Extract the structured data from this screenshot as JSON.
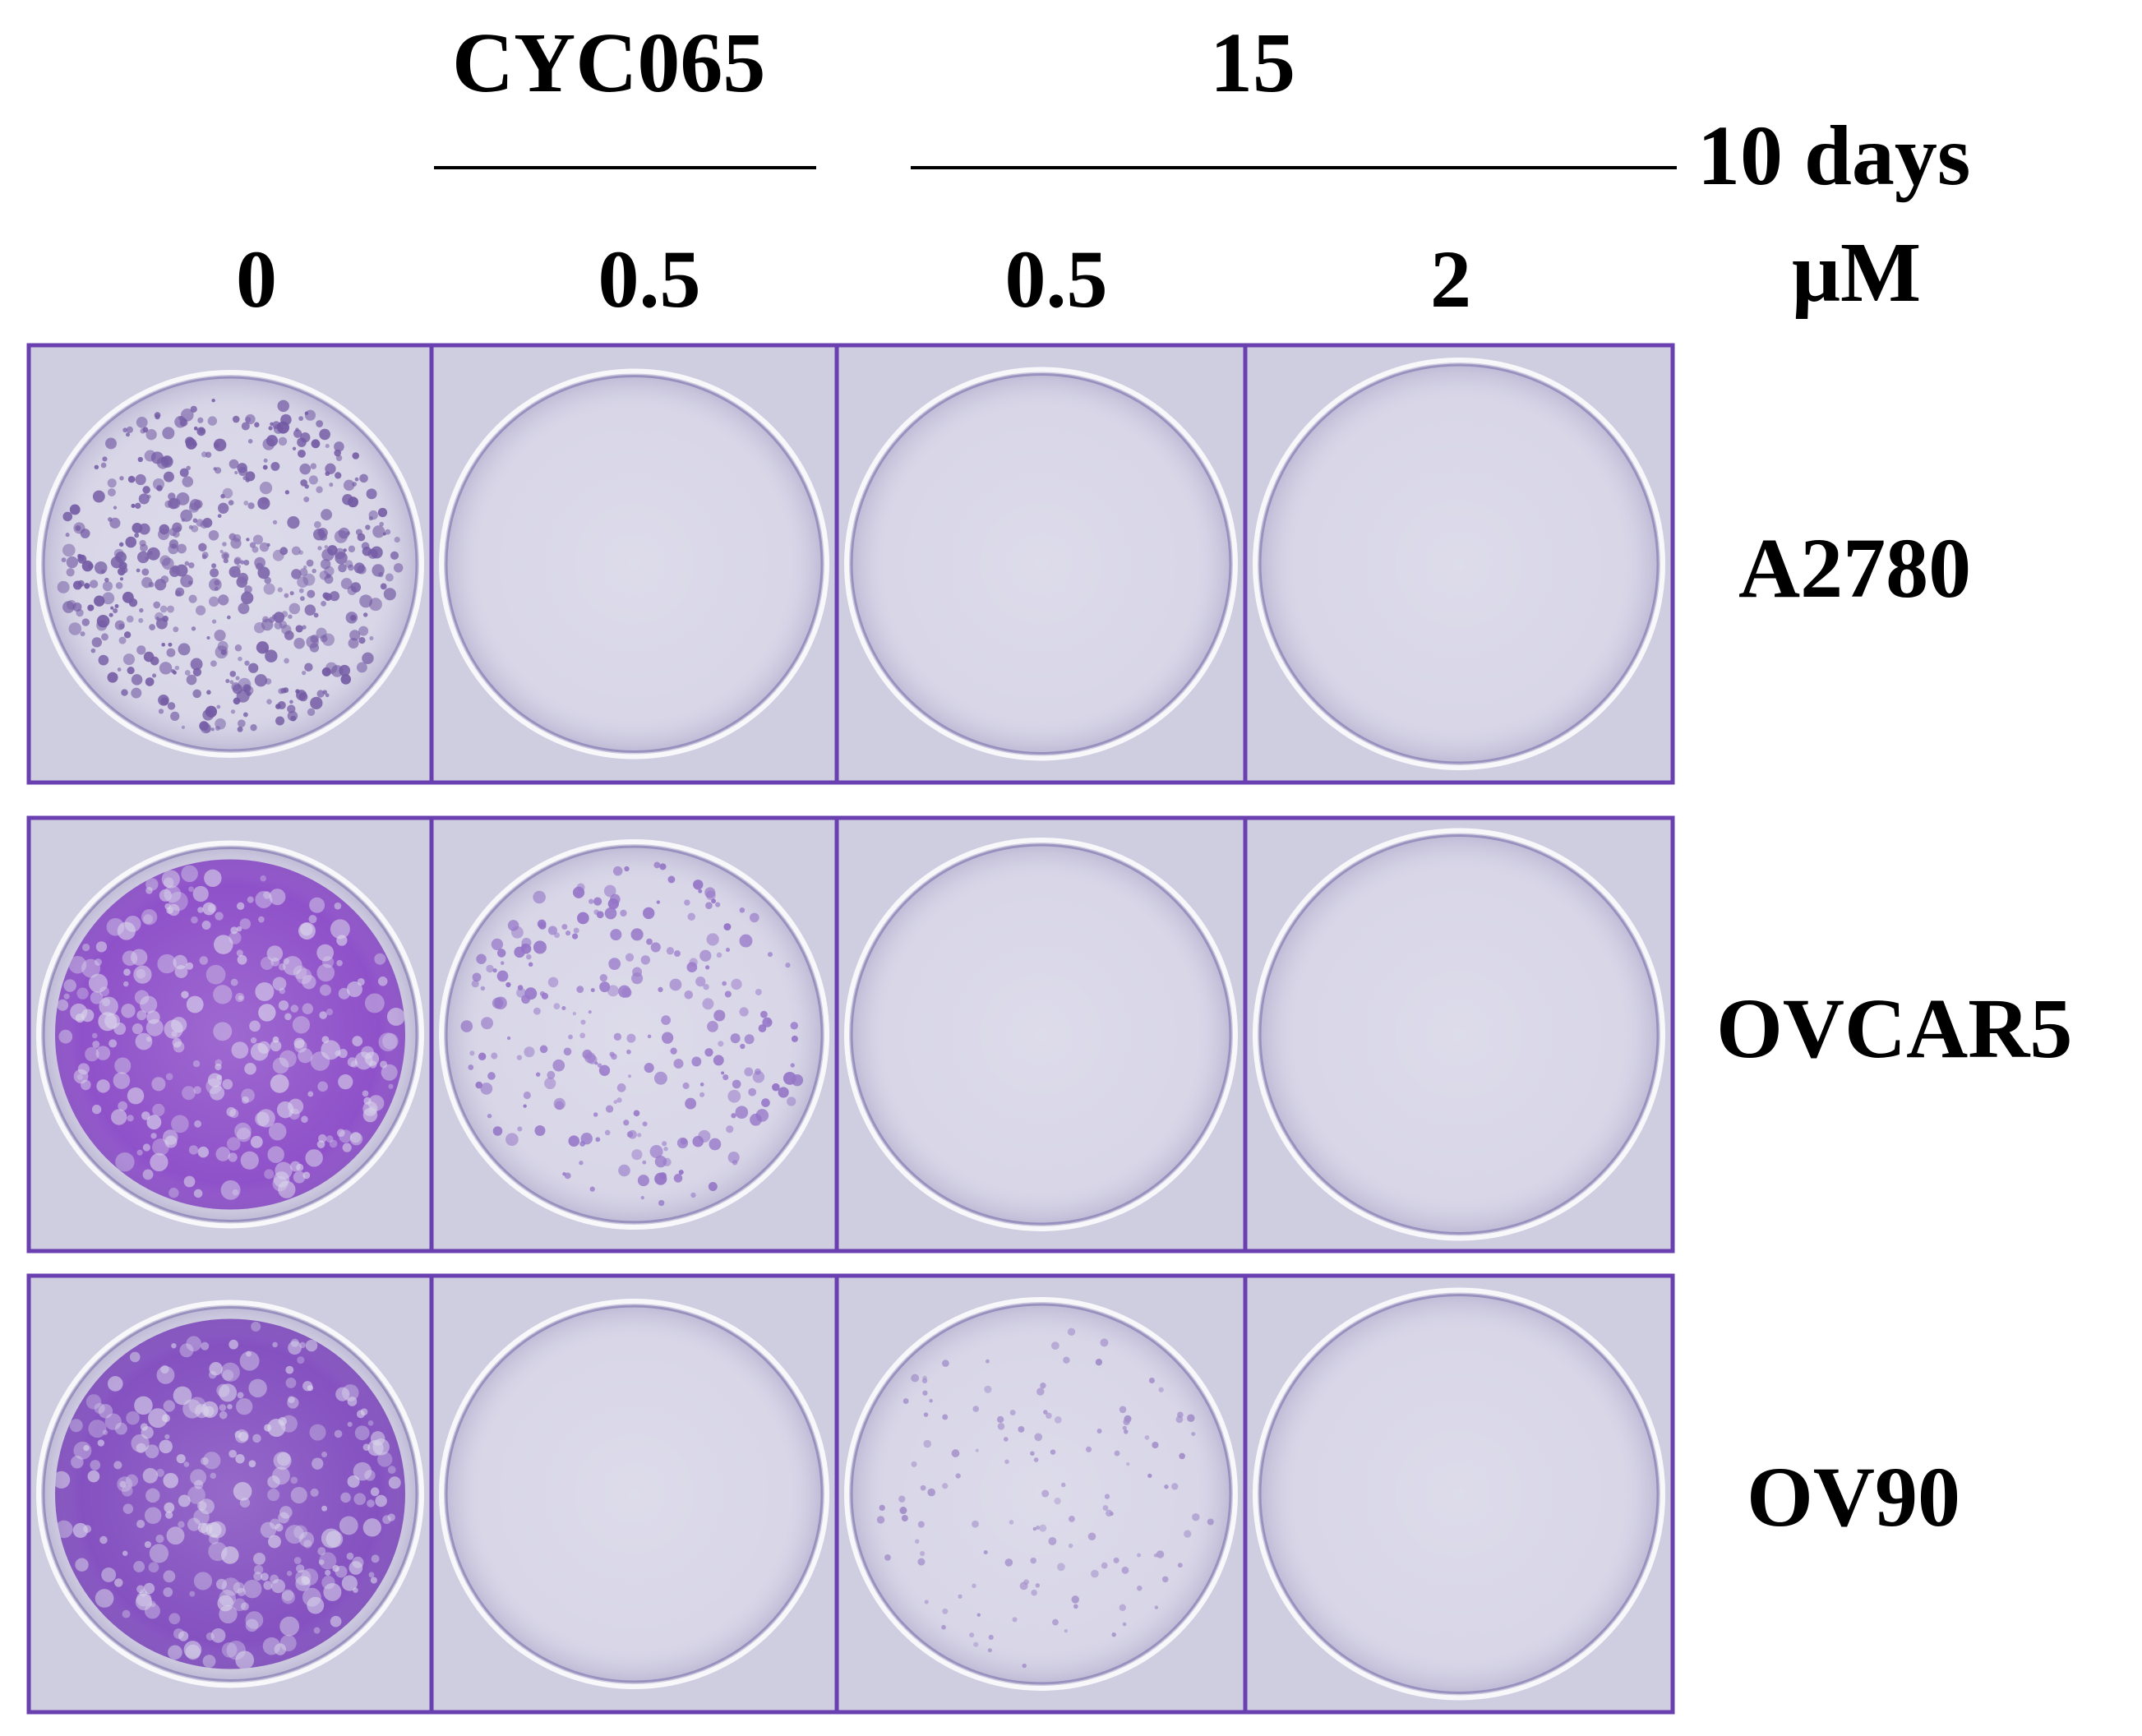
{
  "header": {
    "drug_left": "CYC065",
    "drug_right": "15",
    "duration": "10 days",
    "unit": "μM"
  },
  "columns": [
    {
      "dose": "0"
    },
    {
      "dose": "0.5"
    },
    {
      "dose": "0.5"
    },
    {
      "dose": "2"
    }
  ],
  "rows": [
    {
      "label": "A2780",
      "wells": [
        {
          "stain": "#6a4f9e",
          "coverage": 0.35,
          "density": 0.55,
          "texture": "dots"
        },
        {
          "stain": "#c8c5dc",
          "coverage": 0.0,
          "density": 0.0,
          "texture": "clear"
        },
        {
          "stain": "#c9c6dc",
          "coverage": 0.0,
          "density": 0.0,
          "texture": "clear"
        },
        {
          "stain": "#cbc8de",
          "coverage": 0.0,
          "density": 0.0,
          "texture": "clear"
        }
      ]
    },
    {
      "label": "OVCAR5",
      "wells": [
        {
          "stain": "#7b2fc0",
          "coverage": 0.85,
          "density": 0.9,
          "texture": "dense"
        },
        {
          "stain": "#8e6bc4",
          "coverage": 0.12,
          "density": 0.25,
          "texture": "dots"
        },
        {
          "stain": "#cbc8de",
          "coverage": 0.0,
          "density": 0.0,
          "texture": "clear"
        },
        {
          "stain": "#ccc9df",
          "coverage": 0.0,
          "density": 0.0,
          "texture": "clear"
        }
      ]
    },
    {
      "label": "OV90",
      "wells": [
        {
          "stain": "#6e2fb5",
          "coverage": 0.8,
          "density": 0.85,
          "texture": "dense"
        },
        {
          "stain": "#cbc8de",
          "coverage": 0.0,
          "density": 0.0,
          "texture": "clear"
        },
        {
          "stain": "#9c86c6",
          "coverage": 0.05,
          "density": 0.12,
          "texture": "faint"
        },
        {
          "stain": "#cdcadf",
          "coverage": 0.0,
          "density": 0.0,
          "texture": "clear"
        }
      ]
    }
  ],
  "colors": {
    "frame": "#6a3fb0",
    "well_bg": "#d6d4e6",
    "tile_bg": "#cfcde0"
  }
}
